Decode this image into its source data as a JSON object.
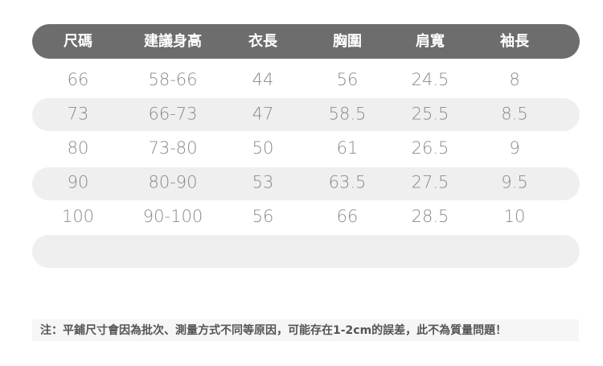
{
  "table": {
    "header": [
      "尺碼",
      "建議身高",
      "衣長",
      "胸圍",
      "肩寬",
      "袖長"
    ],
    "rows": [
      [
        66,
        "58-66",
        44,
        56,
        24.5,
        8
      ],
      [
        73,
        "66-73",
        47,
        58.5,
        25.5,
        8.5
      ],
      [
        80,
        "73-80",
        50,
        61,
        26.5,
        9
      ],
      [
        90,
        "80-90",
        53,
        63.5,
        27.5,
        9.5
      ],
      [
        100,
        "90-100",
        56,
        66,
        28.5,
        10
      ]
    ]
  },
  "footnote": "注：平鋪尺寸會因為批次、測量方式不同等原因，可能存在1-2cm的誤差，此不為質量問題！"
}
